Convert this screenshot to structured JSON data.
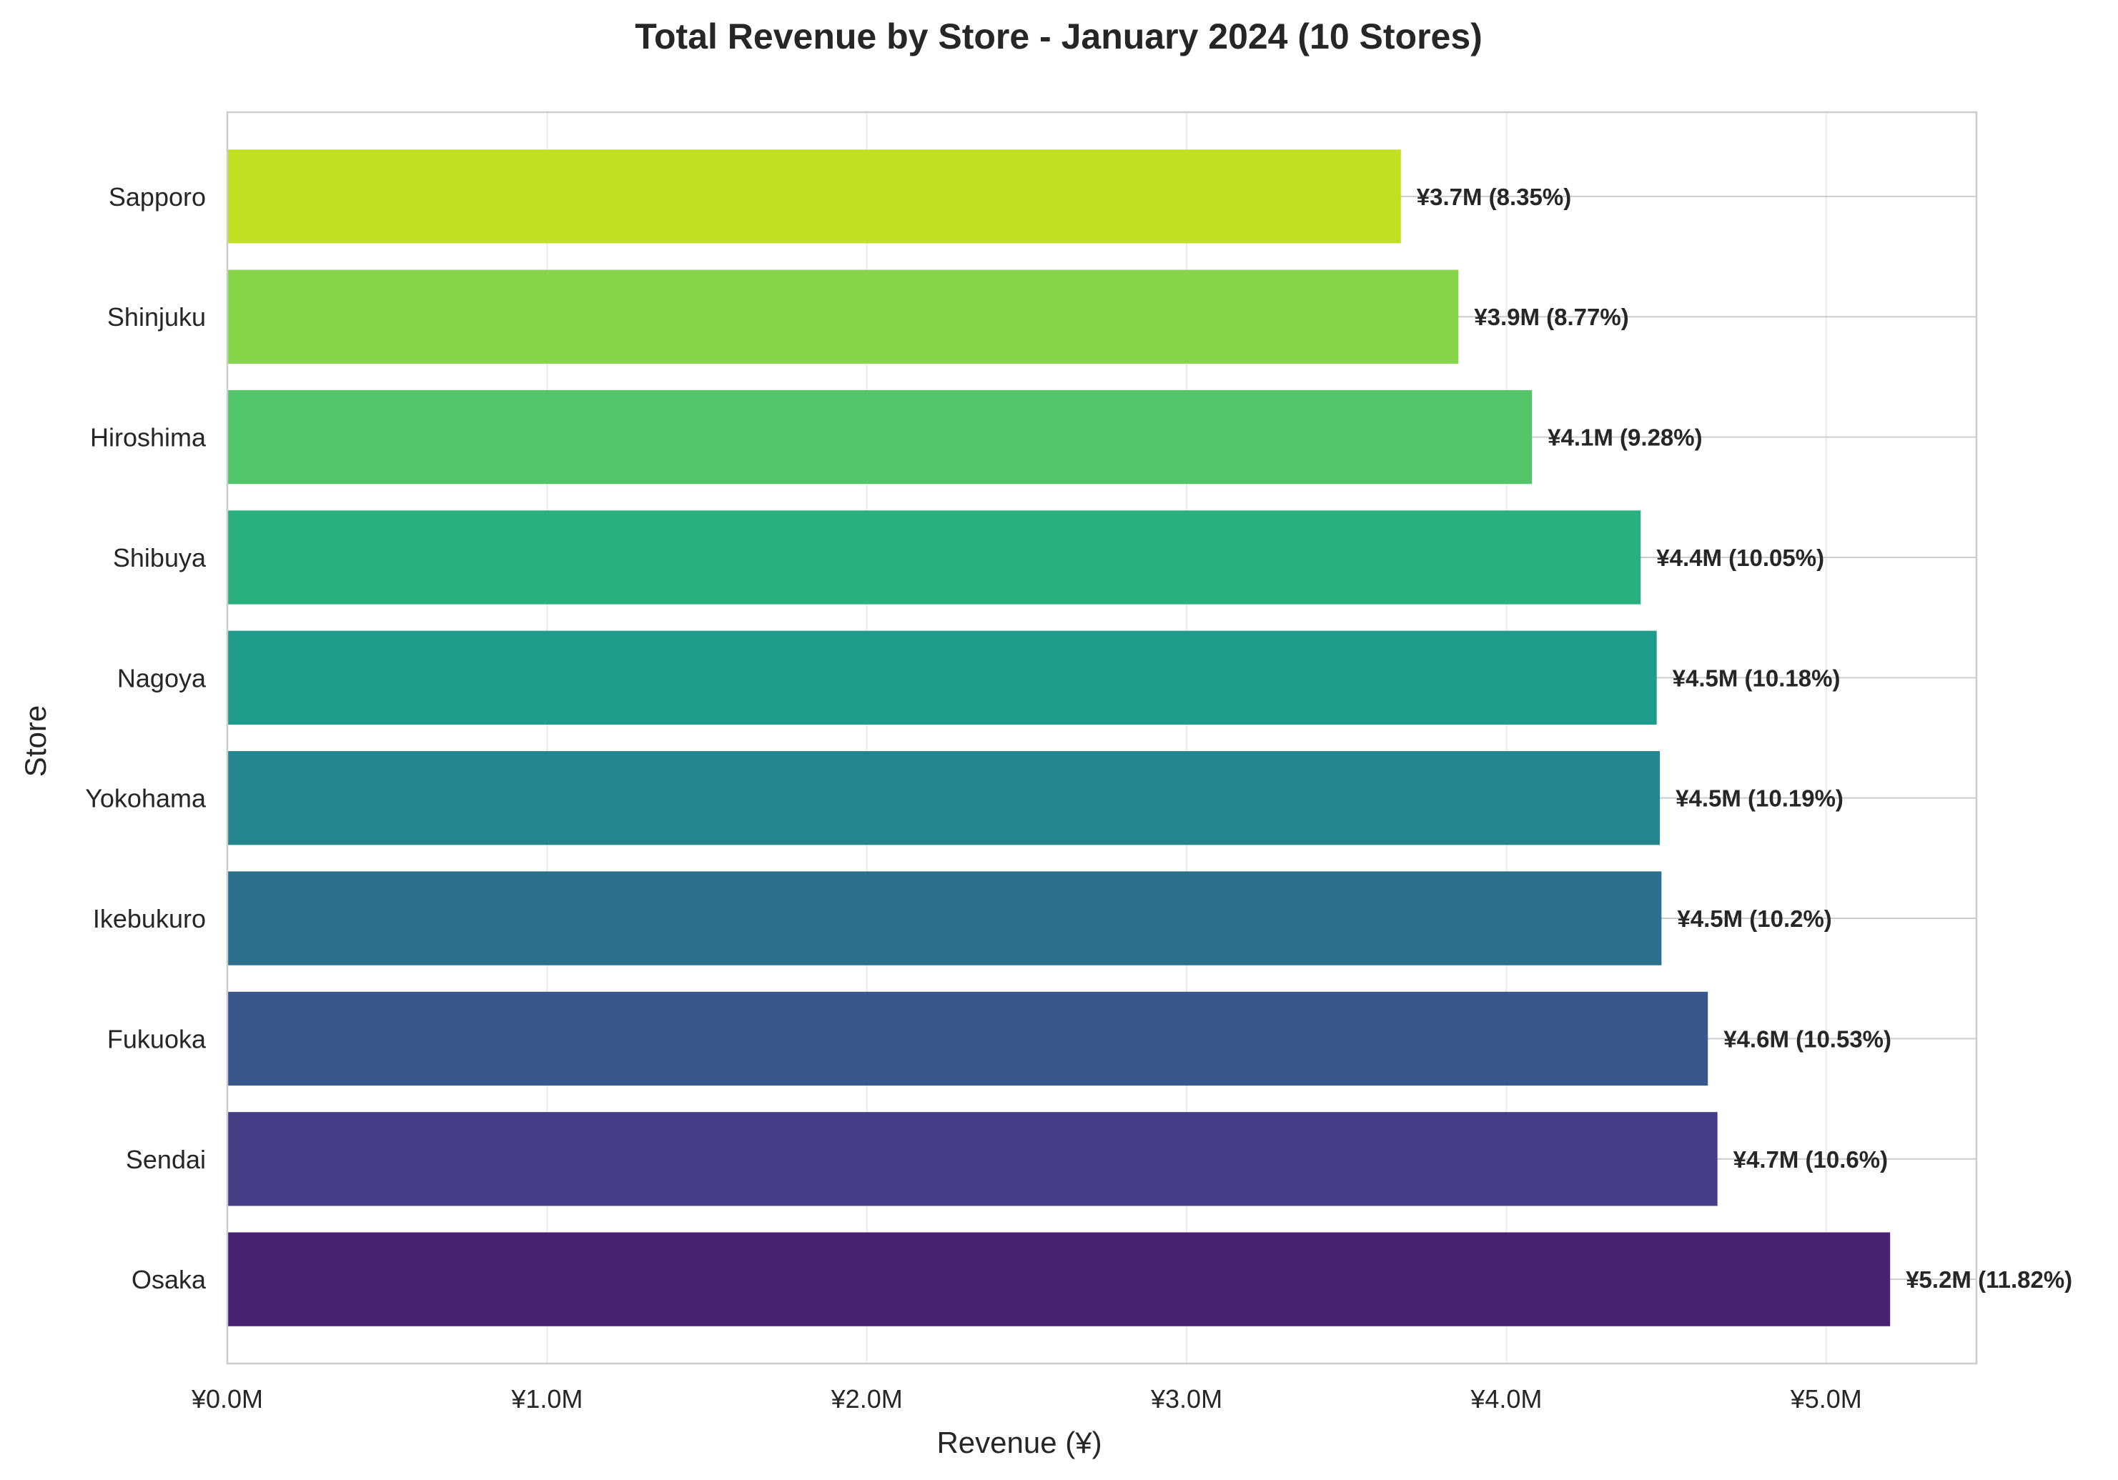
{
  "chart_data": {
    "type": "bar",
    "orientation": "horizontal",
    "title": "Total Revenue by Store - January 2024 (10 Stores)",
    "xlabel": "Revenue (¥)",
    "ylabel": "Store",
    "xlim": [
      0,
      5.47
    ],
    "x_unit": "¥M",
    "x_ticks": [
      {
        "value": 0,
        "label": "¥0.0M"
      },
      {
        "value": 1,
        "label": "¥1.0M"
      },
      {
        "value": 2,
        "label": "¥2.0M"
      },
      {
        "value": 3,
        "label": "¥3.0M"
      },
      {
        "value": 4,
        "label": "¥4.0M"
      },
      {
        "value": 5,
        "label": "¥5.0M"
      }
    ],
    "grid": true,
    "bars": [
      {
        "category": "Sapporo",
        "value": 3.67,
        "label": "¥3.7M (8.35%)",
        "color": "#c2df23"
      },
      {
        "category": "Shinjuku",
        "value": 3.85,
        "label": "¥3.9M (8.77%)",
        "color": "#86d549"
      },
      {
        "category": "Hiroshima",
        "value": 4.08,
        "label": "¥4.1M (9.28%)",
        "color": "#52c569"
      },
      {
        "category": "Shibuya",
        "value": 4.42,
        "label": "¥4.4M (10.05%)",
        "color": "#2ab07f"
      },
      {
        "category": "Nagoya",
        "value": 4.47,
        "label": "¥4.5M (10.18%)",
        "color": "#1e9b8a"
      },
      {
        "category": "Yokohama",
        "value": 4.48,
        "label": "¥4.5M (10.19%)",
        "color": "#25858e"
      },
      {
        "category": "Ikebukuro",
        "value": 4.485,
        "label": "¥4.5M (10.2%)",
        "color": "#2d708e"
      },
      {
        "category": "Fukuoka",
        "value": 4.63,
        "label": "¥4.6M (10.53%)",
        "color": "#38588c"
      },
      {
        "category": "Sendai",
        "value": 4.66,
        "label": "¥4.7M (10.6%)",
        "color": "#433e85"
      },
      {
        "category": "Osaka",
        "value": 5.2,
        "label": "¥5.2M (11.82%)",
        "color": "#482173"
      }
    ]
  }
}
